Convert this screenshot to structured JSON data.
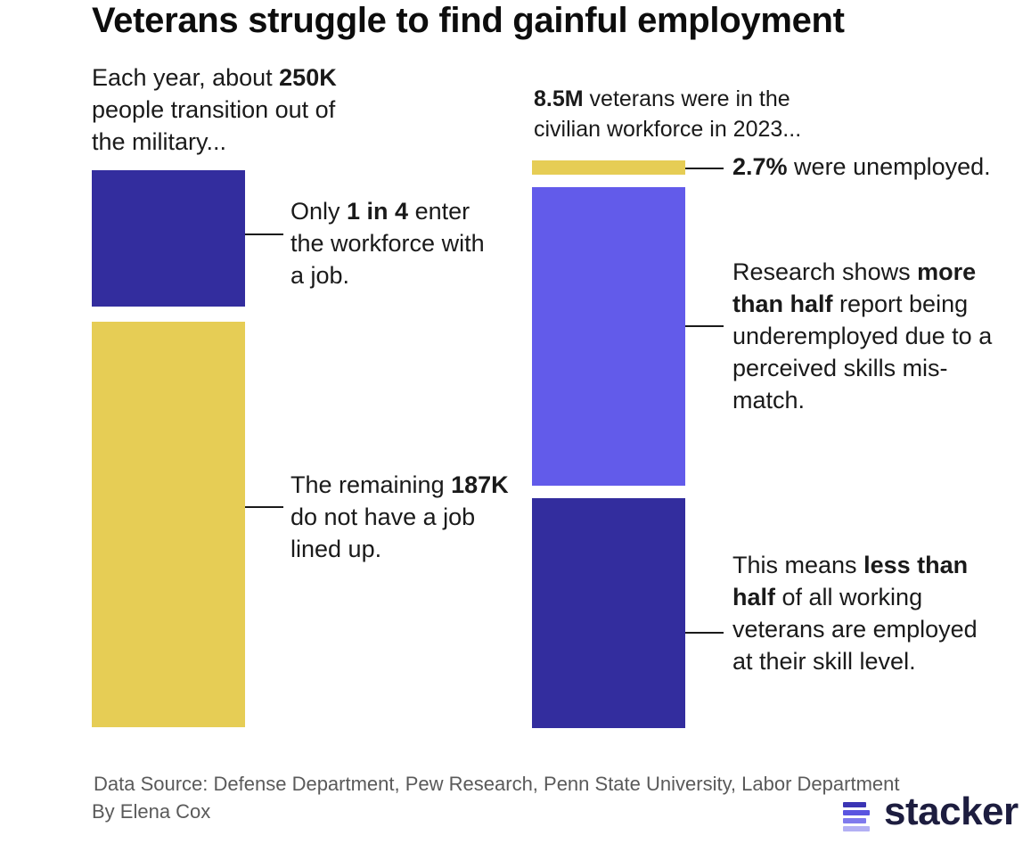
{
  "title": "Veterans struggle to find gainful employment",
  "left": {
    "intro": {
      "pre": "Each year, about ",
      "bold": "250K",
      "post": "people transition out of the military..."
    },
    "label_top": {
      "pre": "Only ",
      "bold": "1 in 4",
      "post": " enter the workforce with a job."
    },
    "label_bottom": {
      "pre": "The remaining ",
      "bold": "187K",
      "post": " do not have a job lined up."
    }
  },
  "right": {
    "intro": {
      "bold": "8.5M",
      "post": " veterans were in the civilian workforce in 2023..."
    },
    "label_top": {
      "bold": "2.7%",
      "post": " were unemployed."
    },
    "label_mid": {
      "pre": "Research shows ",
      "bold": "more than half",
      "post": " report being underemployed due to a perceived skills mis-match."
    },
    "label_bottom": {
      "pre": "This means ",
      "bold": "less than half",
      "post": " of all working veterans are employed at their skill level."
    }
  },
  "footer": {
    "source": "Data Source: Defense Department, Pew Research, Penn State University, Labor Department",
    "byline": "By Elena Cox"
  },
  "logo": {
    "text": "stacker"
  },
  "colors": {
    "navy": "#332d9e",
    "yellow": "#e6cd55",
    "violet": "#625bea",
    "text": "#1a1a1a",
    "footer": "#5a5a5a"
  },
  "chart_data": [
    {
      "type": "bar",
      "stacked": true,
      "total": 250000,
      "segments": [
        {
          "label": "Enter the workforce with a job",
          "value": 63000,
          "color": "#332d9e"
        },
        {
          "label": "Do not have a job lined up",
          "value": 187000,
          "color": "#e6cd55"
        }
      ]
    },
    {
      "type": "bar",
      "stacked": true,
      "unit": "%",
      "segments": [
        {
          "label": "Unemployed",
          "value": 2.7,
          "color": "#e6cd55"
        },
        {
          "label": "Underemployed",
          "value": 55,
          "color": "#625bea"
        },
        {
          "label": "Employed at their skill level",
          "value": 42.3,
          "color": "#332d9e"
        }
      ]
    }
  ]
}
